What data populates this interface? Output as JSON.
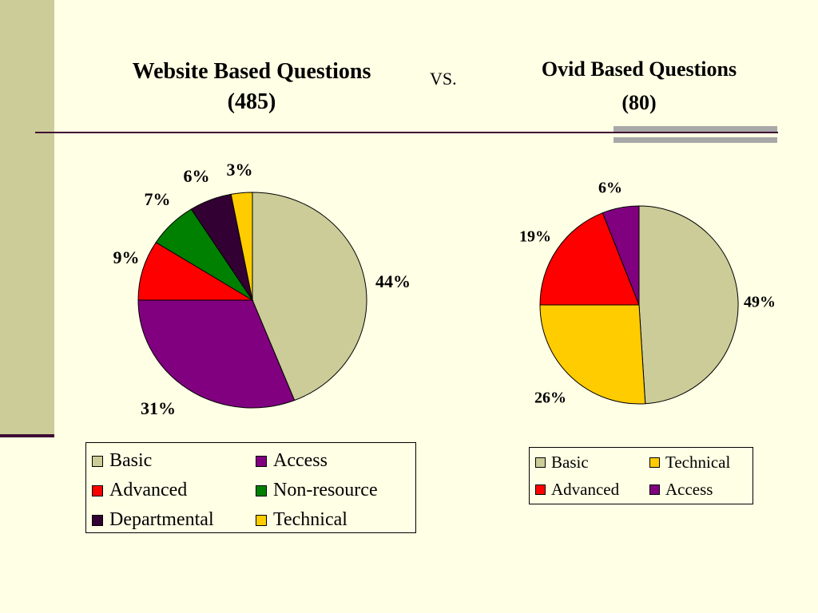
{
  "slide": {
    "left_title_line1": "Website Based Questions",
    "left_title_line2": "(485)",
    "vs_label": "VS.",
    "right_title_line1": "Ovid Based Questions",
    "right_title_line2": "(80)"
  },
  "colors": {
    "background": "#FFFFE5",
    "accent_bar": "#CCCC99",
    "rule": "#3E0A34",
    "grey_bar": "#A8A8A8"
  },
  "chart_data": [
    {
      "type": "pie",
      "title": "Website Based Questions (485)",
      "start_angle_deg": 0,
      "direction": "clockwise",
      "slices": [
        {
          "name": "Basic",
          "value": 44,
          "label": "44%",
          "color": "#CCCC99"
        },
        {
          "name": "Access",
          "value": 31,
          "label": "31%",
          "color": "#800080"
        },
        {
          "name": "Advanced",
          "value": 9,
          "label": "9%",
          "color": "#FF0000"
        },
        {
          "name": "Non-resource",
          "value": 7,
          "label": "7%",
          "color": "#008000"
        },
        {
          "name": "Departmental",
          "value": 6,
          "label": "6%",
          "color": "#330033"
        },
        {
          "name": "Technical",
          "value": 3,
          "label": "3%",
          "color": "#FFCC00"
        }
      ],
      "legend": {
        "placement": "bottom",
        "entries": [
          "Basic",
          "Access",
          "Advanced",
          "Non-resource",
          "Departmental",
          "Technical"
        ]
      }
    },
    {
      "type": "pie",
      "title": "Ovid Based Questions (80)",
      "start_angle_deg": 0,
      "direction": "clockwise",
      "slices": [
        {
          "name": "Basic",
          "value": 49,
          "label": "49%",
          "color": "#CCCC99"
        },
        {
          "name": "Technical",
          "value": 26,
          "label": "26%",
          "color": "#FFCC00"
        },
        {
          "name": "Advanced",
          "value": 19,
          "label": "19%",
          "color": "#FF0000"
        },
        {
          "name": "Access",
          "value": 6,
          "label": "6%",
          "color": "#800080"
        }
      ],
      "legend": {
        "placement": "bottom",
        "entries": [
          "Basic",
          "Technical",
          "Advanced",
          "Access"
        ]
      }
    }
  ]
}
